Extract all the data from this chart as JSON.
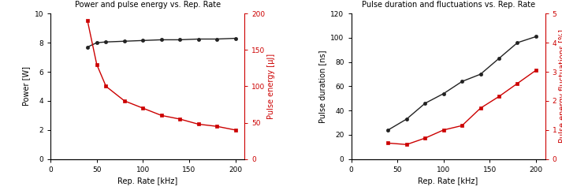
{
  "plot1": {
    "title": "Power and pulse energy vs. Rep. Rate",
    "xlabel": "Rep. Rate [kHz]",
    "ylabel_left": "Power [W]",
    "ylabel_right": "Pulse energy [µJ]",
    "xlim": [
      0,
      210
    ],
    "ylim_left": [
      0,
      10
    ],
    "ylim_right": [
      0,
      200
    ],
    "yticks_left": [
      0,
      2,
      4,
      6,
      8,
      10
    ],
    "yticks_right": [
      0,
      50,
      100,
      150,
      200
    ],
    "xticks": [
      0,
      50,
      100,
      150,
      200
    ],
    "power_x": [
      40,
      50,
      60,
      80,
      100,
      120,
      140,
      160,
      180,
      200
    ],
    "power_y": [
      7.7,
      8.0,
      8.05,
      8.1,
      8.15,
      8.2,
      8.2,
      8.25,
      8.25,
      8.3
    ],
    "energy_x": [
      40,
      50,
      60,
      80,
      100,
      120,
      140,
      160,
      180,
      200
    ],
    "energy_y": [
      190,
      130,
      100,
      80,
      70,
      60,
      55,
      48,
      45,
      40
    ],
    "color_black": "#222222",
    "color_red": "#cc0000"
  },
  "plot2": {
    "title": "Pulse duration and fluctuations vs. Rep. Rate",
    "xlabel": "Rep. Rate [kHz]",
    "ylabel_left": "Pulse duration [ns]",
    "ylabel_right": "Pulse energy fluctuations [%]",
    "xlim": [
      0,
      210
    ],
    "ylim_left": [
      0,
      120
    ],
    "ylim_right": [
      0,
      5
    ],
    "yticks_left": [
      0,
      20,
      40,
      60,
      80,
      100,
      120
    ],
    "yticks_right": [
      0,
      1,
      2,
      3,
      4,
      5
    ],
    "xticks": [
      0,
      50,
      100,
      150,
      200
    ],
    "duration_x": [
      40,
      60,
      80,
      100,
      120,
      140,
      160,
      180,
      200
    ],
    "duration_y": [
      24,
      33,
      46,
      54,
      64,
      70,
      83,
      96,
      101
    ],
    "fluct_x": [
      40,
      60,
      80,
      100,
      120,
      140,
      160,
      180,
      200
    ],
    "fluct_y": [
      0.55,
      0.5,
      0.72,
      1.0,
      1.15,
      1.75,
      2.15,
      2.6,
      3.05
    ],
    "color_black": "#222222",
    "color_red": "#cc0000"
  },
  "figsize": [
    7.13,
    2.46
  ],
  "dpi": 100
}
